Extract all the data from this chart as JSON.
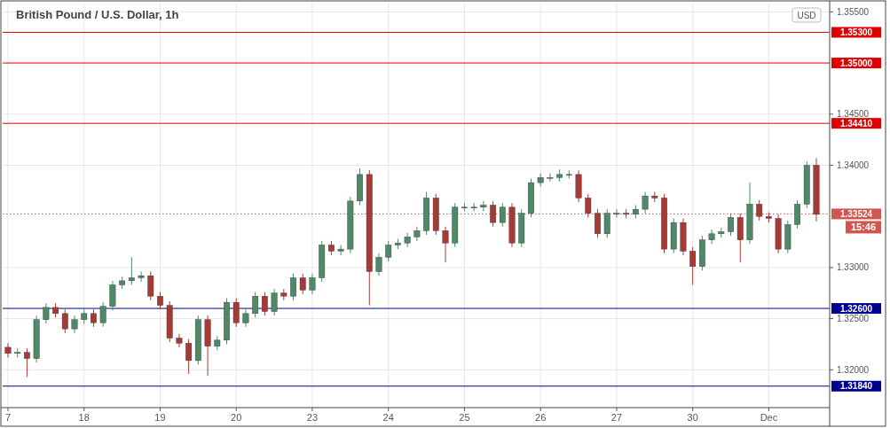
{
  "chart_data": {
    "type": "candlestick",
    "title": "British Pound / U.S. Dollar, 1h",
    "categories": [
      "7",
      null,
      null,
      null,
      null,
      null,
      null,
      null,
      "18",
      null,
      null,
      null,
      null,
      null,
      null,
      null,
      "19",
      null,
      null,
      null,
      null,
      null,
      null,
      null,
      "20",
      null,
      null,
      null,
      null,
      null,
      null,
      null,
      "23",
      null,
      null,
      null,
      null,
      null,
      null,
      null,
      "24",
      null,
      null,
      null,
      null,
      null,
      null,
      null,
      "25",
      null,
      null,
      null,
      null,
      null,
      null,
      null,
      "26",
      null,
      null,
      null,
      null,
      null,
      null,
      null,
      "27",
      null,
      null,
      null,
      null,
      null,
      null,
      null,
      "30",
      null,
      null,
      null,
      null,
      null,
      null,
      null,
      "Dec",
      null,
      null,
      null,
      null,
      null
    ],
    "ohlc": [
      [
        1.3222,
        1.3226,
        1.3212,
        1.3216
      ],
      [
        1.3216,
        1.3221,
        1.3212,
        1.3217
      ],
      [
        1.3217,
        1.3221,
        1.3193,
        1.3211
      ],
      [
        1.3211,
        1.3253,
        1.3207,
        1.3249
      ],
      [
        1.3249,
        1.3265,
        1.3245,
        1.3261
      ],
      [
        1.3261,
        1.3265,
        1.3251,
        1.3255
      ],
      [
        1.3255,
        1.3259,
        1.3236,
        1.324
      ],
      [
        1.324,
        1.3253,
        1.3236,
        1.3249
      ],
      [
        1.3249,
        1.3259,
        1.3245,
        1.3255
      ],
      [
        1.3255,
        1.3259,
        1.3242,
        1.3246
      ],
      [
        1.3246,
        1.3266,
        1.3242,
        1.3262
      ],
      [
        1.3262,
        1.3287,
        1.3258,
        1.3283
      ],
      [
        1.3283,
        1.3291,
        1.3279,
        1.3287
      ],
      [
        1.3287,
        1.331,
        1.3283,
        1.329
      ],
      [
        1.329,
        1.3296,
        1.3286,
        1.3292
      ],
      [
        1.3292,
        1.3296,
        1.3268,
        1.3272
      ],
      [
        1.3272,
        1.3276,
        1.3259,
        1.3263
      ],
      [
        1.3263,
        1.3267,
        1.3227,
        1.3231
      ],
      [
        1.3231,
        1.3235,
        1.3222,
        1.3226
      ],
      [
        1.3226,
        1.323,
        1.3196,
        1.3209
      ],
      [
        1.3209,
        1.3253,
        1.3205,
        1.3249
      ],
      [
        1.3249,
        1.3253,
        1.3194,
        1.3223
      ],
      [
        1.3223,
        1.3233,
        1.3219,
        1.3229
      ],
      [
        1.3229,
        1.327,
        1.3225,
        1.3266
      ],
      [
        1.3266,
        1.327,
        1.3242,
        1.3246
      ],
      [
        1.3246,
        1.3259,
        1.3242,
        1.3255
      ],
      [
        1.3255,
        1.3276,
        1.3251,
        1.3272
      ],
      [
        1.3272,
        1.3276,
        1.3253,
        1.3257
      ],
      [
        1.3257,
        1.3279,
        1.3253,
        1.3275
      ],
      [
        1.3275,
        1.3279,
        1.3268,
        1.3272
      ],
      [
        1.3272,
        1.3294,
        1.3268,
        1.329
      ],
      [
        1.329,
        1.3294,
        1.3274,
        1.3278
      ],
      [
        1.3278,
        1.3294,
        1.3274,
        1.329
      ],
      [
        1.329,
        1.3326,
        1.3286,
        1.3322
      ],
      [
        1.3322,
        1.3326,
        1.3312,
        1.3316
      ],
      [
        1.3316,
        1.3322,
        1.3312,
        1.3318
      ],
      [
        1.3318,
        1.3369,
        1.3314,
        1.3365
      ],
      [
        1.3365,
        1.3397,
        1.3361,
        1.3391
      ],
      [
        1.3391,
        1.3395,
        1.3263,
        1.3296
      ],
      [
        1.3296,
        1.3314,
        1.3292,
        1.331
      ],
      [
        1.331,
        1.3326,
        1.3306,
        1.3322
      ],
      [
        1.3322,
        1.3328,
        1.3318,
        1.3324
      ],
      [
        1.3324,
        1.3334,
        1.332,
        1.333
      ],
      [
        1.333,
        1.334,
        1.3326,
        1.3336
      ],
      [
        1.3336,
        1.3374,
        1.3332,
        1.3368
      ],
      [
        1.3368,
        1.3372,
        1.3332,
        1.3336
      ],
      [
        1.3336,
        1.334,
        1.3305,
        1.3324
      ],
      [
        1.3324,
        1.3363,
        1.332,
        1.3359
      ],
      [
        1.3359,
        1.3363,
        1.3355,
        1.3359
      ],
      [
        1.3359,
        1.3363,
        1.3355,
        1.3359
      ],
      [
        1.3359,
        1.3365,
        1.3355,
        1.3361
      ],
      [
        1.3361,
        1.3365,
        1.334,
        1.3344
      ],
      [
        1.3344,
        1.3363,
        1.334,
        1.3359
      ],
      [
        1.3359,
        1.3363,
        1.332,
        1.3324
      ],
      [
        1.3324,
        1.3357,
        1.332,
        1.3353
      ],
      [
        1.3353,
        1.3387,
        1.3349,
        1.3383
      ],
      [
        1.3383,
        1.3392,
        1.3379,
        1.3388
      ],
      [
        1.3388,
        1.3392,
        1.3384,
        1.3388
      ],
      [
        1.3388,
        1.3396,
        1.3384,
        1.3391
      ],
      [
        1.3391,
        1.3395,
        1.3387,
        1.3391
      ],
      [
        1.3391,
        1.3395,
        1.3364,
        1.3368
      ],
      [
        1.3368,
        1.3372,
        1.3349,
        1.3353
      ],
      [
        1.3353,
        1.3357,
        1.3329,
        1.3333
      ],
      [
        1.3333,
        1.3357,
        1.3329,
        1.3353
      ],
      [
        1.3353,
        1.3357,
        1.3349,
        1.3353
      ],
      [
        1.3353,
        1.3357,
        1.3348,
        1.3352
      ],
      [
        1.3352,
        1.3361,
        1.3348,
        1.3357
      ],
      [
        1.3357,
        1.3374,
        1.3353,
        1.337
      ],
      [
        1.337,
        1.3374,
        1.3364,
        1.3368
      ],
      [
        1.3368,
        1.3372,
        1.3314,
        1.3318
      ],
      [
        1.3318,
        1.3348,
        1.3314,
        1.3344
      ],
      [
        1.3344,
        1.3348,
        1.3312,
        1.3316
      ],
      [
        1.3316,
        1.332,
        1.3283,
        1.3301
      ],
      [
        1.3301,
        1.3331,
        1.3297,
        1.3327
      ],
      [
        1.3327,
        1.3337,
        1.3323,
        1.3333
      ],
      [
        1.3333,
        1.3339,
        1.3329,
        1.3335
      ],
      [
        1.3335,
        1.3353,
        1.3331,
        1.3349
      ],
      [
        1.3349,
        1.3353,
        1.3305,
        1.3327
      ],
      [
        1.3327,
        1.3383,
        1.3323,
        1.3362
      ],
      [
        1.3362,
        1.3366,
        1.3346,
        1.335
      ],
      [
        1.335,
        1.3354,
        1.3344,
        1.3348
      ],
      [
        1.3348,
        1.3352,
        1.3314,
        1.3318
      ],
      [
        1.3318,
        1.3346,
        1.3314,
        1.3342
      ],
      [
        1.3342,
        1.3366,
        1.3338,
        1.3362
      ],
      [
        1.3362,
        1.3404,
        1.3358,
        1.34
      ],
      [
        1.34,
        1.3407,
        1.3345,
        1.3352
      ]
    ],
    "ylim": [
      1.3163,
      1.3559
    ],
    "yticks": [
      {
        "value": 1.32,
        "label": "1.32000"
      },
      {
        "value": 1.325,
        "label": "1.32500"
      },
      {
        "value": 1.33,
        "label": "1.33000"
      },
      {
        "value": 1.34,
        "label": "1.34000"
      },
      {
        "value": 1.345,
        "label": "1.34500"
      },
      {
        "value": 1.355,
        "label": "1.35500"
      }
    ],
    "grid": true,
    "ref_lines": [
      {
        "axis": "y",
        "value": 1.353,
        "label": "1.35300",
        "color": "#e00000",
        "line_style": "solid"
      },
      {
        "axis": "y",
        "value": 1.35,
        "label": "1.35000",
        "color": "#e00000",
        "line_style": "solid"
      },
      {
        "axis": "y",
        "value": 1.3441,
        "label": "1.34410",
        "color": "#e00000",
        "line_style": "solid"
      },
      {
        "axis": "y",
        "value": 1.33524,
        "label": "1.33524",
        "color": "#d0564f",
        "line_style": "dotted"
      },
      {
        "axis": "y",
        "value": 1.326,
        "label": "1.32600",
        "color": "#000090",
        "line_style": "solid"
      },
      {
        "axis": "y",
        "value": 1.3184,
        "label": "1.31840",
        "color": "#000090",
        "line_style": "solid"
      }
    ],
    "annotations": [
      "USD",
      "15:46"
    ]
  }
}
